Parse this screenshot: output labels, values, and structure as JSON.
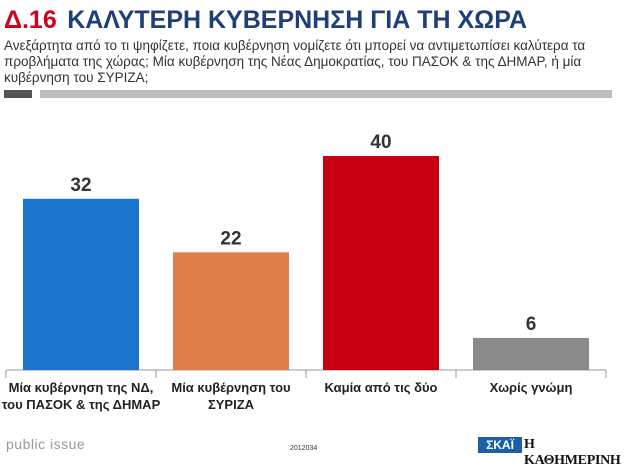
{
  "header": {
    "question_number": "Δ.16",
    "title": "ΚΑΛΥΤΕΡΗ ΚΥΒΕΡΝΗΣΗ ΓΙΑ ΤΗ ΧΩΡΑ",
    "question_text": "Ανεξάρτητα από το τι ψηφίζετε, ποια κυβέρνηση νομίζετε ότι μπορεί να αντιμετωπίσει καλύτερα τα προβλήματα της χώρας; Μία κυβέρνηση της Νέας Δημοκρατίας, του ΠΑΣΟΚ & της ΔΗΜΑΡ, ή μία κυβέρνηση του ΣΥΡΙΖΑ;"
  },
  "chart_data": {
    "type": "bar",
    "categories": [
      [
        "Μία κυβέρνηση της ΝΔ,",
        "του ΠΑΣΟΚ & της ΔΗΜΑΡ"
      ],
      [
        "Μία κυβέρνηση του",
        "ΣΥΡΙΖΑ"
      ],
      [
        "Καμία από τις δύο"
      ],
      [
        "Χωρίς γνώμη"
      ]
    ],
    "values": [
      32,
      22,
      40,
      6
    ],
    "colors": [
      "#1b75cf",
      "#e07e48",
      "#c8000f",
      "#8a8a8a"
    ],
    "ylim": [
      0,
      40
    ],
    "grid": false,
    "legend": "none"
  },
  "footer": {
    "brand": "public issue",
    "code": "2012034",
    "logo_skai": "ΣΚΑΪ",
    "logo_kathimerini": "Η ΚΑΘΗΜΕΡΙΝΗ"
  }
}
